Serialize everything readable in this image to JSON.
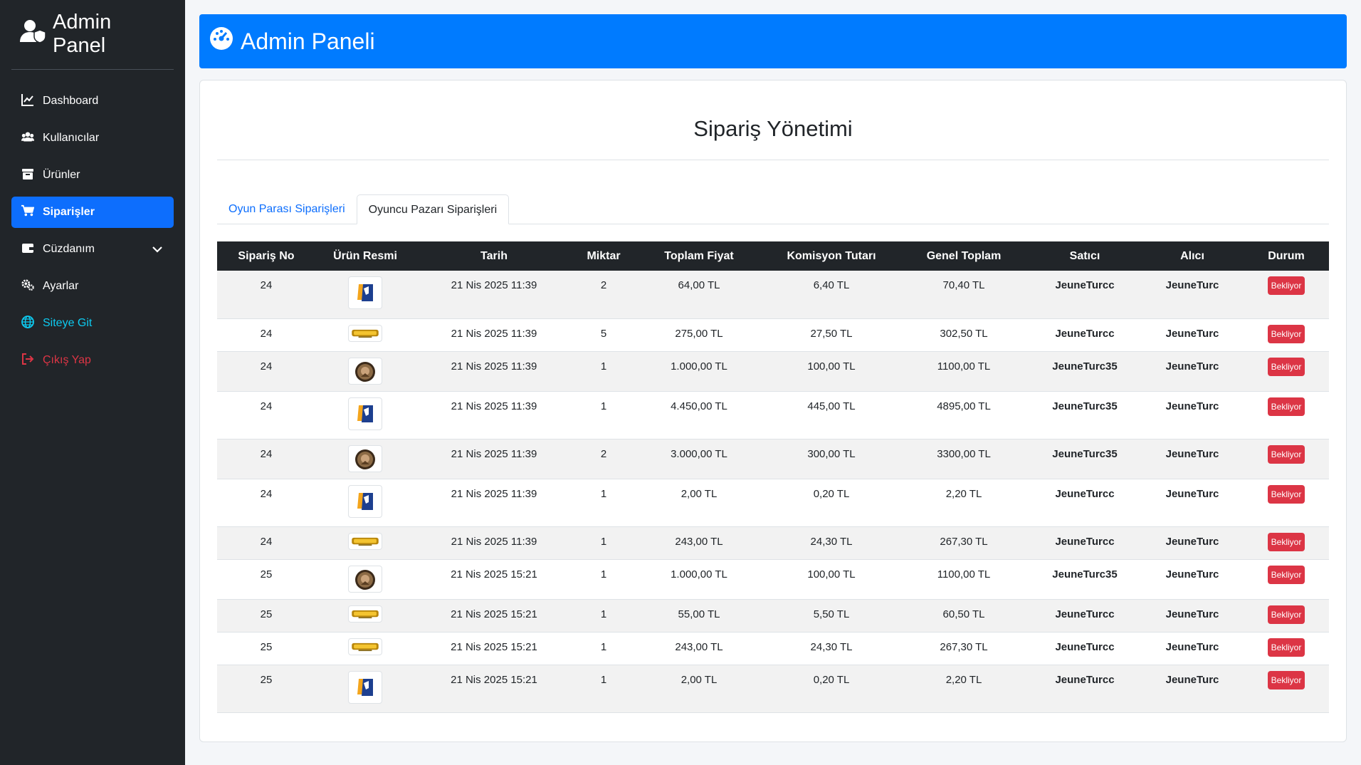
{
  "sidebar": {
    "brand": "Admin Panel",
    "items": [
      {
        "label": "Dashboard",
        "icon": "chart-line-icon"
      },
      {
        "label": "Kullanıcılar",
        "icon": "users-icon"
      },
      {
        "label": "Ürünler",
        "icon": "box-icon"
      },
      {
        "label": "Siparişler",
        "icon": "cart-icon",
        "active": true
      },
      {
        "label": "Cüzdanım",
        "icon": "wallet-icon"
      },
      {
        "label": "Ayarlar",
        "icon": "gears-icon"
      },
      {
        "label": "Siteye Git",
        "icon": "globe-icon"
      },
      {
        "label": "Çıkış Yap",
        "icon": "logout-icon"
      }
    ]
  },
  "header": {
    "title": "Admin Paneli"
  },
  "main": {
    "title": "Sipariş Yönetimi",
    "tabs": [
      {
        "label": "Oyun Parası Siparişleri"
      },
      {
        "label": "Oyuncu Pazarı Siparişleri",
        "active": true
      }
    ],
    "table": {
      "columns": [
        "Sipariş No",
        "Ürün Resmi",
        "Tarih",
        "Miktar",
        "Toplam Fiyat",
        "Komisyon Tutarı",
        "Genel Toplam",
        "Satıcı",
        "Alıcı",
        "Durum"
      ],
      "rows": [
        {
          "no": "24",
          "img": "knight-logo",
          "date": "21 Nis 2025 11:39",
          "qty": "2",
          "total": "64,00 TL",
          "commission": "6,40 TL",
          "grand": "70,40 TL",
          "seller": "JeuneTurcc",
          "buyer": "JeuneTurc",
          "status": "Bekliyor"
        },
        {
          "no": "24",
          "img": "gold-logo",
          "date": "21 Nis 2025 11:39",
          "qty": "5",
          "total": "275,00 TL",
          "commission": "27,50 TL",
          "grand": "302,50 TL",
          "seller": "JeuneTurcc",
          "buyer": "JeuneTurc",
          "status": "Bekliyor"
        },
        {
          "no": "24",
          "img": "round-logo",
          "date": "21 Nis 2025 11:39",
          "qty": "1",
          "total": "1.000,00 TL",
          "commission": "100,00 TL",
          "grand": "1100,00 TL",
          "seller": "JeuneTurc35",
          "buyer": "JeuneTurc",
          "status": "Bekliyor"
        },
        {
          "no": "24",
          "img": "knight-logo",
          "date": "21 Nis 2025 11:39",
          "qty": "1",
          "total": "4.450,00 TL",
          "commission": "445,00 TL",
          "grand": "4895,00 TL",
          "seller": "JeuneTurc35",
          "buyer": "JeuneTurc",
          "status": "Bekliyor"
        },
        {
          "no": "24",
          "img": "round-logo",
          "date": "21 Nis 2025 11:39",
          "qty": "2",
          "total": "3.000,00 TL",
          "commission": "300,00 TL",
          "grand": "3300,00 TL",
          "seller": "JeuneTurc35",
          "buyer": "JeuneTurc",
          "status": "Bekliyor"
        },
        {
          "no": "24",
          "img": "knight-logo",
          "date": "21 Nis 2025 11:39",
          "qty": "1",
          "total": "2,00 TL",
          "commission": "0,20 TL",
          "grand": "2,20 TL",
          "seller": "JeuneTurcc",
          "buyer": "JeuneTurc",
          "status": "Bekliyor"
        },
        {
          "no": "24",
          "img": "gold-logo",
          "date": "21 Nis 2025 11:39",
          "qty": "1",
          "total": "243,00 TL",
          "commission": "24,30 TL",
          "grand": "267,30 TL",
          "seller": "JeuneTurcc",
          "buyer": "JeuneTurc",
          "status": "Bekliyor"
        },
        {
          "no": "25",
          "img": "round-logo",
          "date": "21 Nis 2025 15:21",
          "qty": "1",
          "total": "1.000,00 TL",
          "commission": "100,00 TL",
          "grand": "1100,00 TL",
          "seller": "JeuneTurc35",
          "buyer": "JeuneTurc",
          "status": "Bekliyor"
        },
        {
          "no": "25",
          "img": "gold-logo",
          "date": "21 Nis 2025 15:21",
          "qty": "1",
          "total": "55,00 TL",
          "commission": "5,50 TL",
          "grand": "60,50 TL",
          "seller": "JeuneTurcc",
          "buyer": "JeuneTurc",
          "status": "Bekliyor"
        },
        {
          "no": "25",
          "img": "gold-logo",
          "date": "21 Nis 2025 15:21",
          "qty": "1",
          "total": "243,00 TL",
          "commission": "24,30 TL",
          "grand": "267,30 TL",
          "seller": "JeuneTurcc",
          "buyer": "JeuneTurc",
          "status": "Bekliyor"
        },
        {
          "no": "25",
          "img": "knight-logo",
          "date": "21 Nis 2025 15:21",
          "qty": "1",
          "total": "2,00 TL",
          "commission": "0,20 TL",
          "grand": "2,20 TL",
          "seller": "JeuneTurcc",
          "buyer": "JeuneTurc",
          "status": "Bekliyor"
        }
      ]
    }
  },
  "colors": {
    "sidebar_bg": "#212529",
    "primary": "#007bff",
    "danger": "#dc3545",
    "info": "#0dcaf0"
  }
}
